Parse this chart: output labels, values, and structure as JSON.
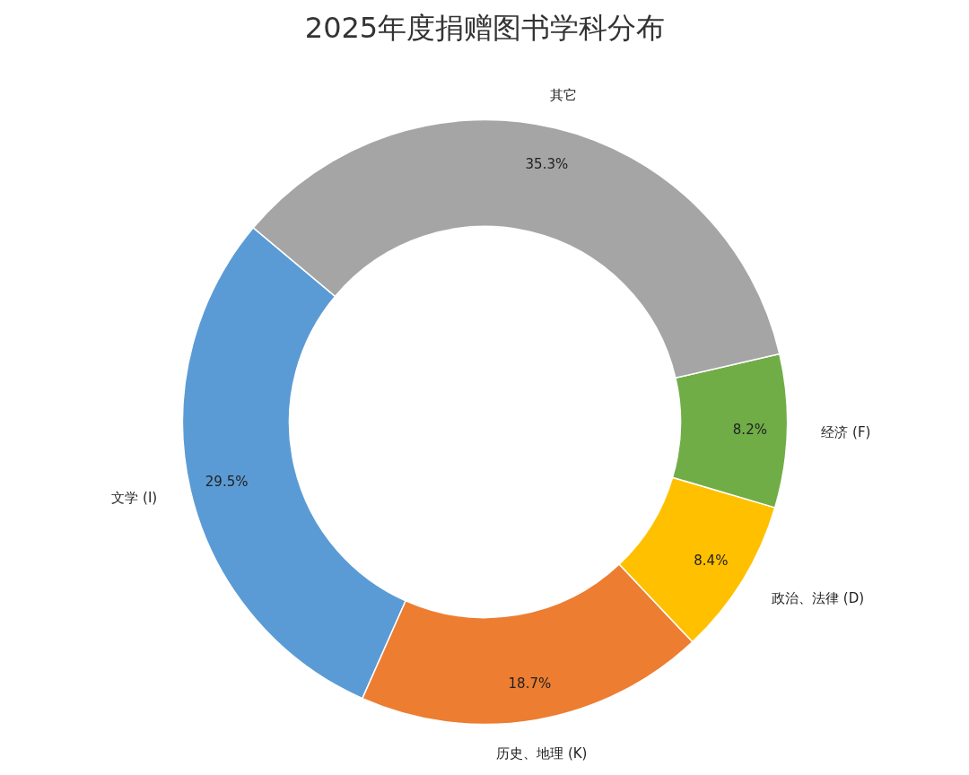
{
  "chart_data": {
    "type": "donut",
    "title": "2025年度捐赠图书学科分布",
    "categories": [
      "文学 (I)",
      "历史、地理 (K)",
      "政治、法律 (D)",
      "经济 (F)",
      "其它"
    ],
    "values": [
      29.5,
      18.7,
      8.4,
      8.2,
      35.3
    ],
    "value_labels": [
      "29.5%",
      "18.7%",
      "8.4%",
      "8.2%",
      "35.3%"
    ],
    "colors": [
      "#5b9bd5",
      "#ed7d31",
      "#ffc000",
      "#70ad47",
      "#a5a5a5"
    ],
    "legend": false
  }
}
